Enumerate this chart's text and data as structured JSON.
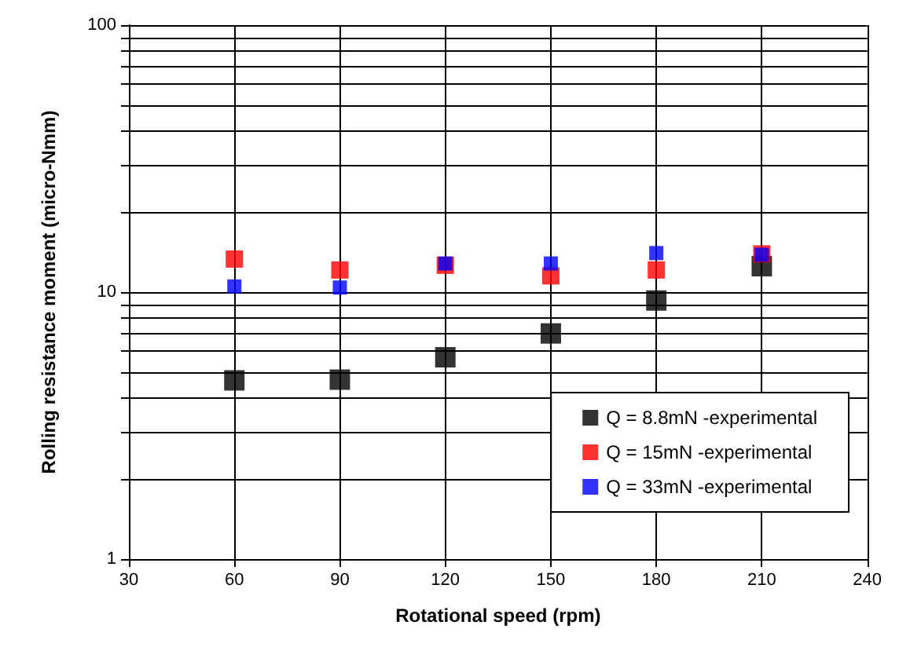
{
  "chart_data": {
    "type": "scatter",
    "xlabel": "Rotational speed (rpm)",
    "ylabel": "Rolling resistance moment (micro-Nmm)",
    "x": [
      60,
      90,
      120,
      150,
      180,
      210
    ],
    "series": [
      {
        "name": "Q = 8.8mN -experimental",
        "color": "#000000",
        "values": [
          4.67,
          4.7,
          5.7,
          7.0,
          9.3,
          12.5
        ]
      },
      {
        "name": "Q = 15mN -experimental",
        "color": "#ff0000",
        "values": [
          13.3,
          12.1,
          12.6,
          11.5,
          12.1,
          13.9
        ]
      },
      {
        "name": "Q = 33mN -experimental",
        "color": "#0000ff",
        "values": [
          10.5,
          10.4,
          12.8,
          12.8,
          14.0,
          13.8
        ]
      }
    ],
    "xlim": [
      30,
      240
    ],
    "xticks": [
      30,
      60,
      90,
      120,
      150,
      180,
      210,
      240
    ],
    "ylim": [
      1,
      100
    ],
    "yticks": [
      1,
      {
        "value": 2,
        "label": null
      },
      {
        "value": 3,
        "label": null
      },
      {
        "value": 4,
        "label": null
      },
      {
        "value": 5,
        "label": null
      },
      {
        "value": 6,
        "label": null
      },
      {
        "value": 7,
        "label": null
      },
      {
        "value": 8,
        "label": null
      },
      {
        "value": 9,
        "label": null
      },
      10,
      {
        "value": 20,
        "label": null
      },
      {
        "value": 30,
        "label": null
      },
      {
        "value": 40,
        "label": null
      },
      {
        "value": 50,
        "label": null
      },
      {
        "value": 60,
        "label": null
      },
      {
        "value": 70,
        "label": null
      },
      {
        "value": 80,
        "label": null
      },
      {
        "value": 90,
        "label": null
      },
      100
    ],
    "log": "y",
    "grid": true,
    "legend": "bottom right",
    "marker": "square"
  }
}
